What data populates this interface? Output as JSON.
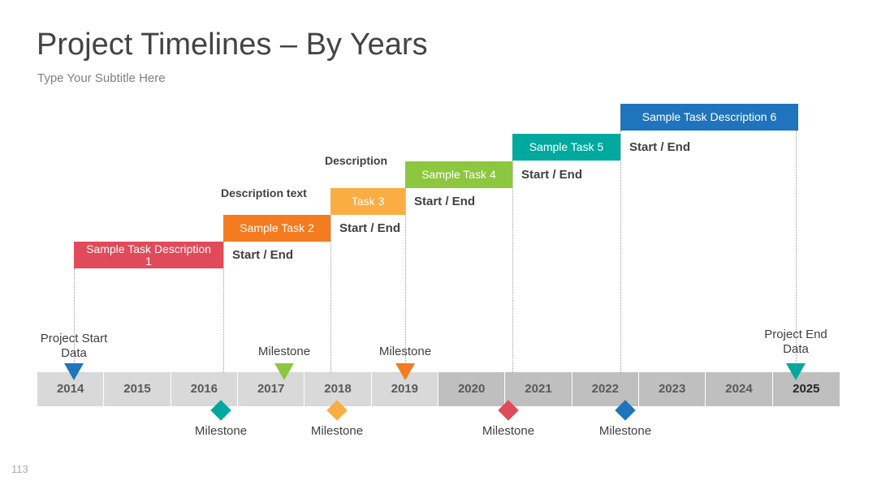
{
  "header": {
    "title": "Project Timelines – By Years",
    "subtitle": "Type Your Subtitle Here"
  },
  "years": [
    "2014",
    "2015",
    "2016",
    "2017",
    "2018",
    "2019",
    "2020",
    "2021",
    "2022",
    "2023",
    "2024",
    "2025"
  ],
  "tasks": [
    {
      "label": "Sample Task Description 1",
      "dates": "Start / End"
    },
    {
      "label": "Sample Task 2",
      "note": "Description text",
      "dates": "Start / End"
    },
    {
      "label": "Task 3",
      "note": "Description",
      "dates": "Start / End"
    },
    {
      "label": "Sample Task 4",
      "dates": "Start / End"
    },
    {
      "label": "Sample Task 5",
      "dates": "Start / End"
    },
    {
      "label": "Sample Task Description 6"
    }
  ],
  "milestones_above": [
    "Project Start Data",
    "Milestone",
    "Milestone",
    "Project End Data"
  ],
  "milestones_below": [
    "Milestone",
    "Milestone",
    "Milestone",
    "Milestone"
  ],
  "page_number": "113"
}
